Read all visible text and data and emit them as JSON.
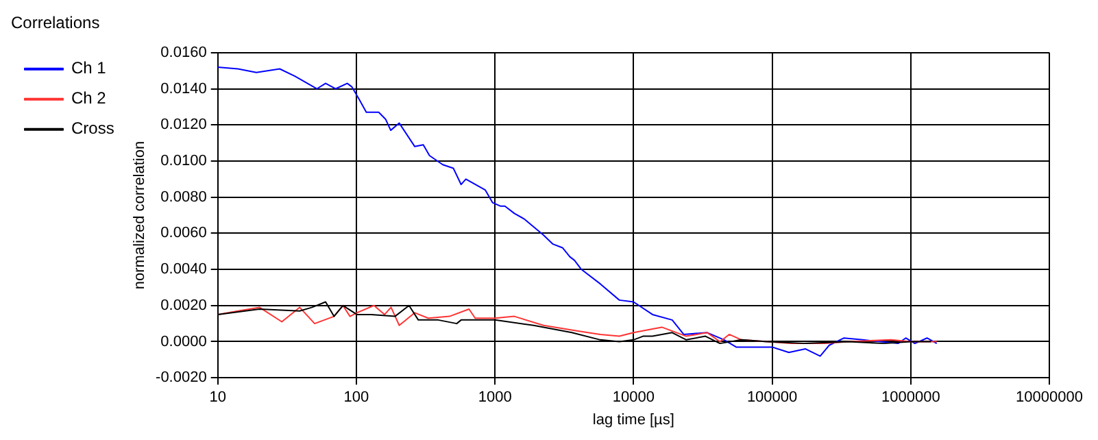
{
  "chart_data": {
    "type": "line",
    "title": "Correlations",
    "xlabel": "lag time [µs]",
    "ylabel": "normalized correlation",
    "log": "x",
    "grid": true,
    "legend": "top left",
    "marker": "none",
    "line_style": "solid",
    "xlim": [
      10,
      10000000
    ],
    "xticks": [
      10,
      100,
      1000,
      10000,
      100000,
      1000000,
      10000000
    ],
    "ylim": [
      -0.002,
      0.016
    ],
    "yticks": [
      {
        "value": -0.002,
        "label": "-0.0020"
      },
      {
        "value": 0,
        "label": "0.0000"
      },
      {
        "value": 0.002,
        "label": "0.0020"
      },
      {
        "value": 0.004,
        "label": "0.0040"
      },
      {
        "value": 0.006,
        "label": "0.0060"
      },
      {
        "value": 0.008,
        "label": "0.0080"
      },
      {
        "value": 0.01,
        "label": "0.0100"
      },
      {
        "value": 0.012,
        "label": "0.0120"
      },
      {
        "value": 0.014,
        "label": "0.0140"
      },
      {
        "value": 0.016,
        "label": "0.0160"
      }
    ],
    "series": [
      {
        "name": "Ch 1",
        "color": "#0000ff",
        "x": [
          10,
          14,
          19,
          28,
          36,
          52,
          60,
          71,
          86,
          93,
          105,
          118,
          145,
          163,
          177,
          204,
          264,
          304,
          337,
          420,
          501,
          570,
          617,
          850,
          960,
          1100,
          1180,
          1380,
          1620,
          2240,
          2620,
          3070,
          3470,
          3750,
          4200,
          5750,
          7900,
          10000,
          13700,
          19000,
          23000,
          34000,
          45000,
          55000,
          100000,
          132000,
          174000,
          222000,
          258000,
          330000,
          450000,
          610000,
          810000,
          920000,
          1070000,
          1310000,
          1540000
        ],
        "values": [
          0.0152,
          0.0151,
          0.0149,
          0.0151,
          0.0147,
          0.014,
          0.0143,
          0.014,
          0.0143,
          0.0141,
          0.0134,
          0.0127,
          0.0127,
          0.0123,
          0.0117,
          0.0121,
          0.0108,
          0.0109,
          0.0103,
          0.0098,
          0.0096,
          0.0087,
          0.009,
          0.0084,
          0.0077,
          0.0075,
          0.0075,
          0.0071,
          0.0068,
          0.0059,
          0.0054,
          0.0052,
          0.0047,
          0.0045,
          0.004,
          0.0032,
          0.0023,
          0.0022,
          0.0015,
          0.0012,
          0.0004,
          0.0005,
          0.0001,
          -0.0003,
          -0.0003,
          -0.0006,
          -0.0004,
          -0.0008,
          -0.0002,
          0.0002,
          0.0001,
          0,
          -0.0001,
          0.0002,
          -0.0001,
          0.0002,
          -0.0001
        ]
      },
      {
        "name": "Ch 2",
        "color": "#ff3333",
        "x": [
          10,
          14,
          20,
          29,
          39,
          50,
          69,
          80,
          90,
          101,
          134,
          160,
          178,
          204,
          264,
          330,
          470,
          650,
          720,
          1000,
          1380,
          2240,
          3900,
          5750,
          7900,
          10000,
          13700,
          16000,
          24000,
          34000,
          42000,
          49000,
          60000,
          92000,
          137000,
          240000,
          355000,
          720000,
          1000000,
          1540000
        ],
        "values": [
          0.0015,
          0.0017,
          0.0019,
          0.0011,
          0.0019,
          0.001,
          0.0014,
          0.002,
          0.0014,
          0.0016,
          0.002,
          0.0015,
          0.0019,
          0.0009,
          0.0016,
          0.0013,
          0.0014,
          0.0018,
          0.0013,
          0.0013,
          0.0014,
          0.0009,
          0.0006,
          0.0004,
          0.0003,
          0.0005,
          0.0007,
          0.0008,
          0.0003,
          0.0005,
          0,
          0.0004,
          0.0001,
          0,
          -0.0001,
          -0.0001,
          0,
          0.0001,
          0,
          0
        ]
      },
      {
        "name": "Cross",
        "color": "#000000",
        "x": [
          10,
          20,
          39,
          48,
          60,
          69,
          80,
          101,
          128,
          190,
          240,
          280,
          390,
          530,
          570,
          1000,
          1900,
          3590,
          5750,
          7900,
          10000,
          11700,
          13700,
          19000,
          24000,
          33000,
          42000,
          60000,
          92000,
          174000,
          355000,
          640000,
          1000000,
          1400000
        ],
        "values": [
          0.0015,
          0.0018,
          0.0017,
          0.0019,
          0.0022,
          0.0014,
          0.002,
          0.0015,
          0.0015,
          0.0014,
          0.002,
          0.0012,
          0.0012,
          0.001,
          0.0012,
          0.0012,
          0.0009,
          0.0005,
          0.0001,
          0,
          0.0001,
          0.0003,
          0.0003,
          0.0005,
          0.0001,
          0.0003,
          -0.0001,
          0.0001,
          0,
          -0.0001,
          0,
          -0.0001,
          0,
          0
        ]
      }
    ]
  }
}
